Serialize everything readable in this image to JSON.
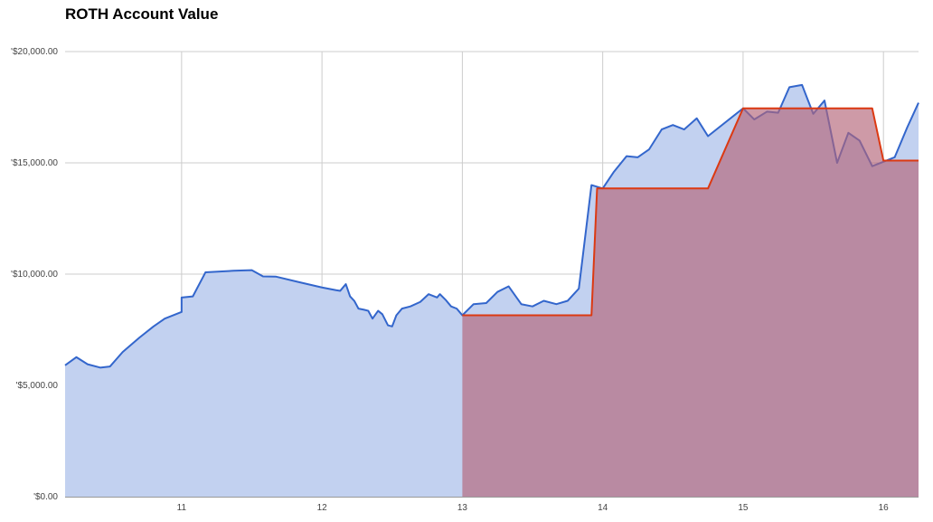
{
  "chart_data": {
    "type": "area",
    "title": "ROTH Account Value",
    "xlabel": "",
    "ylabel": "",
    "xlim": [
      10.17,
      16.25
    ],
    "ylim": [
      0,
      20000
    ],
    "x_ticks": [
      11,
      12,
      13,
      14,
      15,
      16
    ],
    "x_tick_labels": [
      "11",
      "12",
      "13",
      "14",
      "15",
      "16"
    ],
    "y_ticks": [
      0,
      5000,
      10000,
      15000,
      20000
    ],
    "y_tick_labels": [
      "'$0.00",
      "'$5,000.00",
      "'$10,000.00",
      "'$15,000.00",
      "'$20,000.00"
    ],
    "grid": true,
    "legend": "none",
    "series": [
      {
        "color": "#3366cc",
        "fill": "#c2d1f0",
        "points": [
          [
            10.17,
            5900
          ],
          [
            10.25,
            6270
          ],
          [
            10.33,
            5950
          ],
          [
            10.42,
            5800
          ],
          [
            10.49,
            5850
          ],
          [
            10.58,
            6500
          ],
          [
            10.7,
            7150
          ],
          [
            10.8,
            7650
          ],
          [
            10.88,
            8000
          ],
          [
            11.0,
            8300
          ],
          [
            11.0,
            8950
          ],
          [
            11.08,
            9000
          ],
          [
            11.17,
            10080
          ],
          [
            11.37,
            10150
          ],
          [
            11.5,
            10180
          ],
          [
            11.58,
            9900
          ],
          [
            11.67,
            9890
          ],
          [
            11.83,
            9650
          ],
          [
            12.0,
            9400
          ],
          [
            12.1,
            9280
          ],
          [
            12.13,
            9250
          ],
          [
            12.17,
            9550
          ],
          [
            12.2,
            9000
          ],
          [
            12.23,
            8800
          ],
          [
            12.26,
            8450
          ],
          [
            12.3,
            8400
          ],
          [
            12.33,
            8350
          ],
          [
            12.36,
            8000
          ],
          [
            12.4,
            8350
          ],
          [
            12.43,
            8200
          ],
          [
            12.47,
            7700
          ],
          [
            12.5,
            7650
          ],
          [
            12.53,
            8150
          ],
          [
            12.57,
            8450
          ],
          [
            12.63,
            8550
          ],
          [
            12.7,
            8750
          ],
          [
            12.76,
            9100
          ],
          [
            12.82,
            8950
          ],
          [
            12.84,
            9100
          ],
          [
            12.88,
            8850
          ],
          [
            12.92,
            8550
          ],
          [
            12.96,
            8450
          ],
          [
            13.0,
            8150
          ],
          [
            13.08,
            8650
          ],
          [
            13.17,
            8700
          ],
          [
            13.25,
            9200
          ],
          [
            13.33,
            9450
          ],
          [
            13.42,
            8650
          ],
          [
            13.5,
            8550
          ],
          [
            13.58,
            8800
          ],
          [
            13.67,
            8650
          ],
          [
            13.75,
            8800
          ],
          [
            13.83,
            9350
          ],
          [
            13.92,
            14000
          ],
          [
            14.0,
            13850
          ],
          [
            14.08,
            14600
          ],
          [
            14.17,
            15300
          ],
          [
            14.25,
            15250
          ],
          [
            14.33,
            15600
          ],
          [
            14.42,
            16500
          ],
          [
            14.5,
            16700
          ],
          [
            14.58,
            16500
          ],
          [
            14.67,
            17000
          ],
          [
            14.75,
            16200
          ],
          [
            15.0,
            17450
          ],
          [
            15.08,
            16950
          ],
          [
            15.17,
            17300
          ],
          [
            15.25,
            17250
          ],
          [
            15.33,
            18400
          ],
          [
            15.42,
            18500
          ],
          [
            15.5,
            17200
          ],
          [
            15.58,
            17800
          ],
          [
            15.67,
            15000
          ],
          [
            15.75,
            16350
          ],
          [
            15.83,
            16000
          ],
          [
            15.92,
            14850
          ],
          [
            16.0,
            15050
          ],
          [
            16.08,
            15250
          ],
          [
            16.17,
            16600
          ],
          [
            16.25,
            17700
          ]
        ]
      },
      {
        "color": "#dc3912",
        "fill": "#b46478",
        "points": [
          [
            13.0,
            8150
          ],
          [
            13.92,
            8150
          ],
          [
            13.96,
            13850
          ],
          [
            14.75,
            13850
          ],
          [
            15.0,
            17450
          ],
          [
            15.92,
            17450
          ],
          [
            16.0,
            15100
          ],
          [
            16.25,
            15100
          ]
        ]
      }
    ]
  }
}
